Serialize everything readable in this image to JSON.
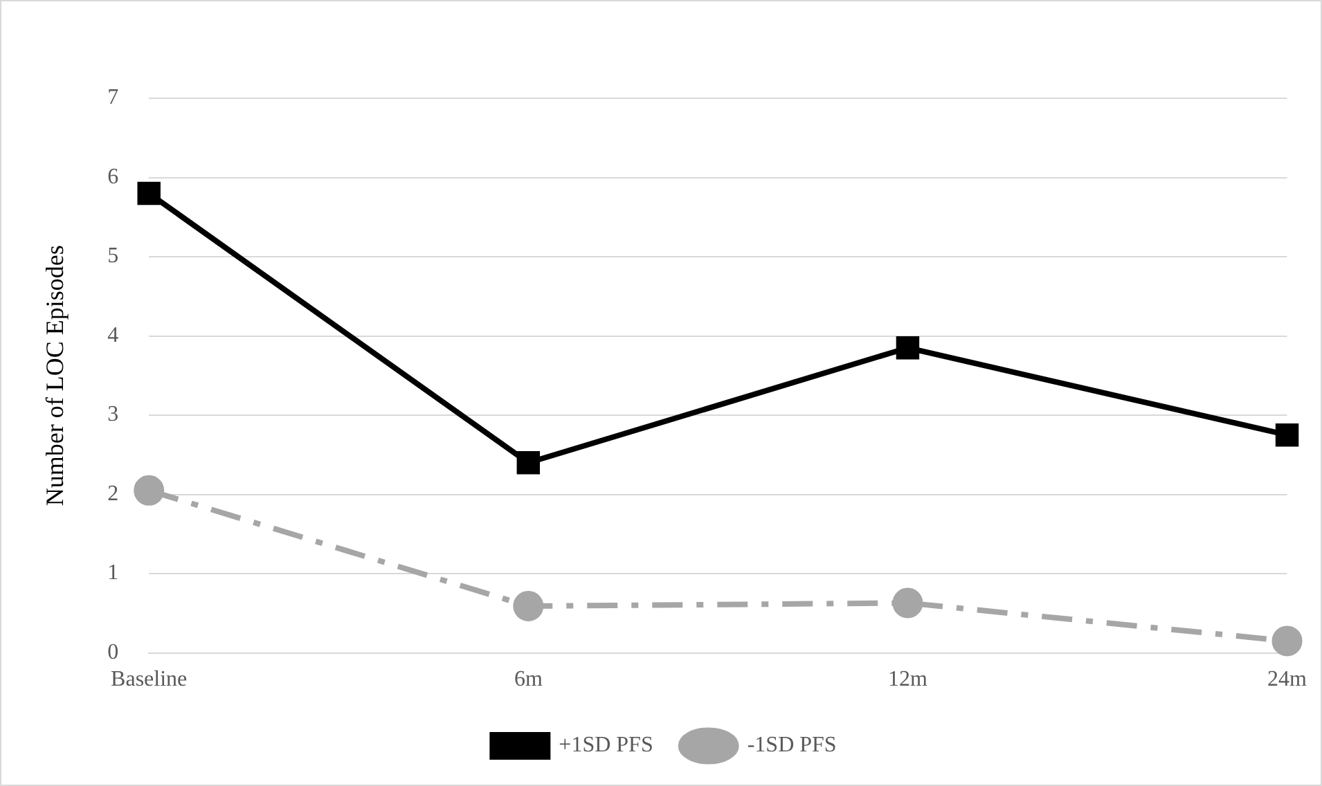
{
  "chart_data": {
    "type": "line",
    "ylabel": "Number of LOC Episodes",
    "categories": [
      "Baseline",
      "6m",
      "12m",
      "24m"
    ],
    "series": [
      {
        "name": "+1SD PFS",
        "color": "#000000",
        "values": [
          5.8,
          2.4,
          3.85,
          2.75
        ],
        "marker": "square",
        "line_style": "solid"
      },
      {
        "name": "-1SD PFS",
        "color": "#a6a6a6",
        "values": [
          2.05,
          0.59,
          0.63,
          0.15
        ],
        "marker": "circle",
        "line_style": "dashed"
      }
    ],
    "ylim": [
      0,
      7
    ],
    "yticks": [
      0,
      1,
      2,
      3,
      4,
      5,
      6,
      7
    ],
    "grid": "y",
    "legend": "bottom"
  }
}
